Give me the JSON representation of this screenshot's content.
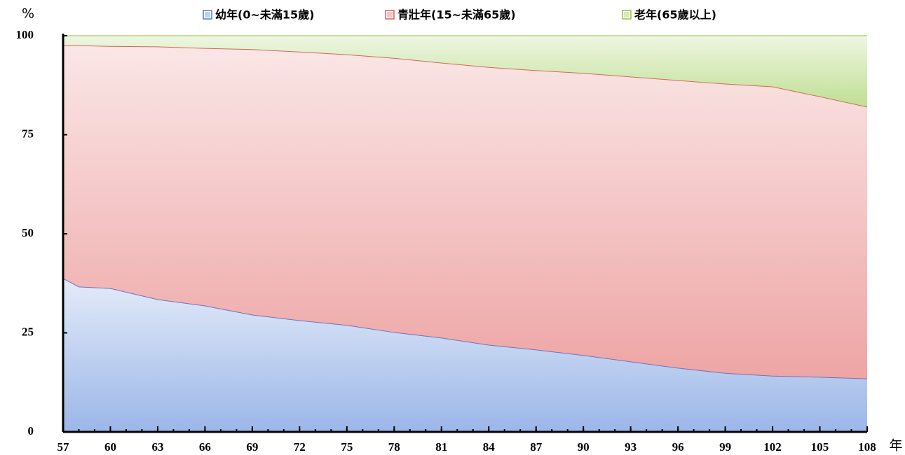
{
  "chart_data": {
    "type": "stacked-area",
    "y_label": "%",
    "x_label": "年",
    "x": [
      57,
      58,
      60,
      63,
      66,
      69,
      72,
      75,
      78,
      81,
      84,
      87,
      90,
      93,
      96,
      99,
      102,
      105,
      108
    ],
    "series": [
      {
        "name": "幼年(0~未滿15歲)",
        "color": "#4a7bd6",
        "values": [
          38.7,
          36.6,
          36.2,
          33.4,
          31.8,
          29.5,
          28.1,
          26.9,
          25.1,
          23.7,
          21.9,
          20.7,
          19.3,
          17.7,
          16.1,
          14.8,
          14.1,
          13.8,
          13.4
        ]
      },
      {
        "name": "青壯年(15~未滿65歲)",
        "color": "#e05a5a",
        "values": [
          58.8,
          60.9,
          61.1,
          63.8,
          65.0,
          67.0,
          67.8,
          68.3,
          69.2,
          69.4,
          70.1,
          70.5,
          71.2,
          71.9,
          72.6,
          73.0,
          73.0,
          70.8,
          68.6
        ]
      },
      {
        "name": "老年(65歲以上)",
        "color": "#8cc43c",
        "values": [
          2.5,
          2.5,
          2.7,
          2.8,
          3.2,
          3.5,
          4.1,
          4.8,
          5.7,
          6.9,
          8.0,
          8.8,
          9.5,
          10.4,
          11.3,
          12.2,
          12.9,
          15.4,
          18.0
        ]
      }
    ],
    "xlim": [
      57,
      108
    ],
    "xticks": [
      57,
      60,
      63,
      66,
      69,
      72,
      75,
      78,
      81,
      84,
      87,
      90,
      93,
      96,
      99,
      102,
      105,
      108
    ],
    "ylim": [
      0,
      100
    ],
    "yticks": [
      0,
      25,
      50,
      75,
      100
    ]
  }
}
